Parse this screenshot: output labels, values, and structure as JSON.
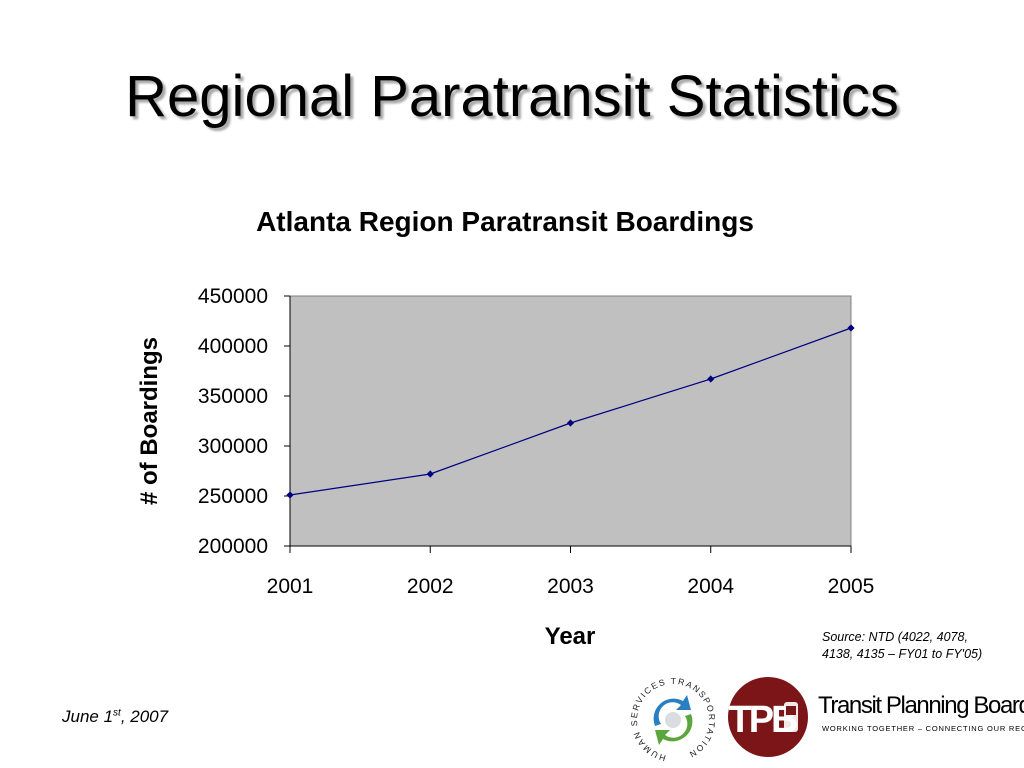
{
  "slide": {
    "title": "Regional Paratransit Statistics",
    "date_main": "June 1",
    "date_sup": "st",
    "date_tail": ", 2007",
    "source_line1": "Source: NTD (4022, 4078,",
    "source_line2": "4138, 4135 – FY01 to FY'05)"
  },
  "logos": {
    "hst_ring_text": "HUMAN SERVICES TRANSPORTATION",
    "tpb_letters": "TPB",
    "tpb_name": "Transit Planning Board",
    "tpb_tagline": "WORKING TOGETHER – CONNECTING OUR REGION"
  },
  "colors": {
    "plot_area": "#c0c0c0",
    "series": "#000080",
    "tpb_red": "#7b1518",
    "hst_blue": "#2a7fc0",
    "hst_green": "#5aa63c"
  },
  "chart_data": {
    "type": "line",
    "title": "Atlanta Region Paratransit Boardings",
    "xlabel": "Year",
    "ylabel": "# of Boardings",
    "categories": [
      "2001",
      "2002",
      "2003",
      "2004",
      "2005"
    ],
    "series": [
      {
        "values": [
          251000,
          272000,
          323000,
          367000,
          418000
        ]
      }
    ],
    "ylim": [
      200000,
      450000
    ],
    "yticks": [
      200000,
      250000,
      300000,
      350000,
      400000,
      450000
    ],
    "grid": false,
    "legend": "none"
  }
}
